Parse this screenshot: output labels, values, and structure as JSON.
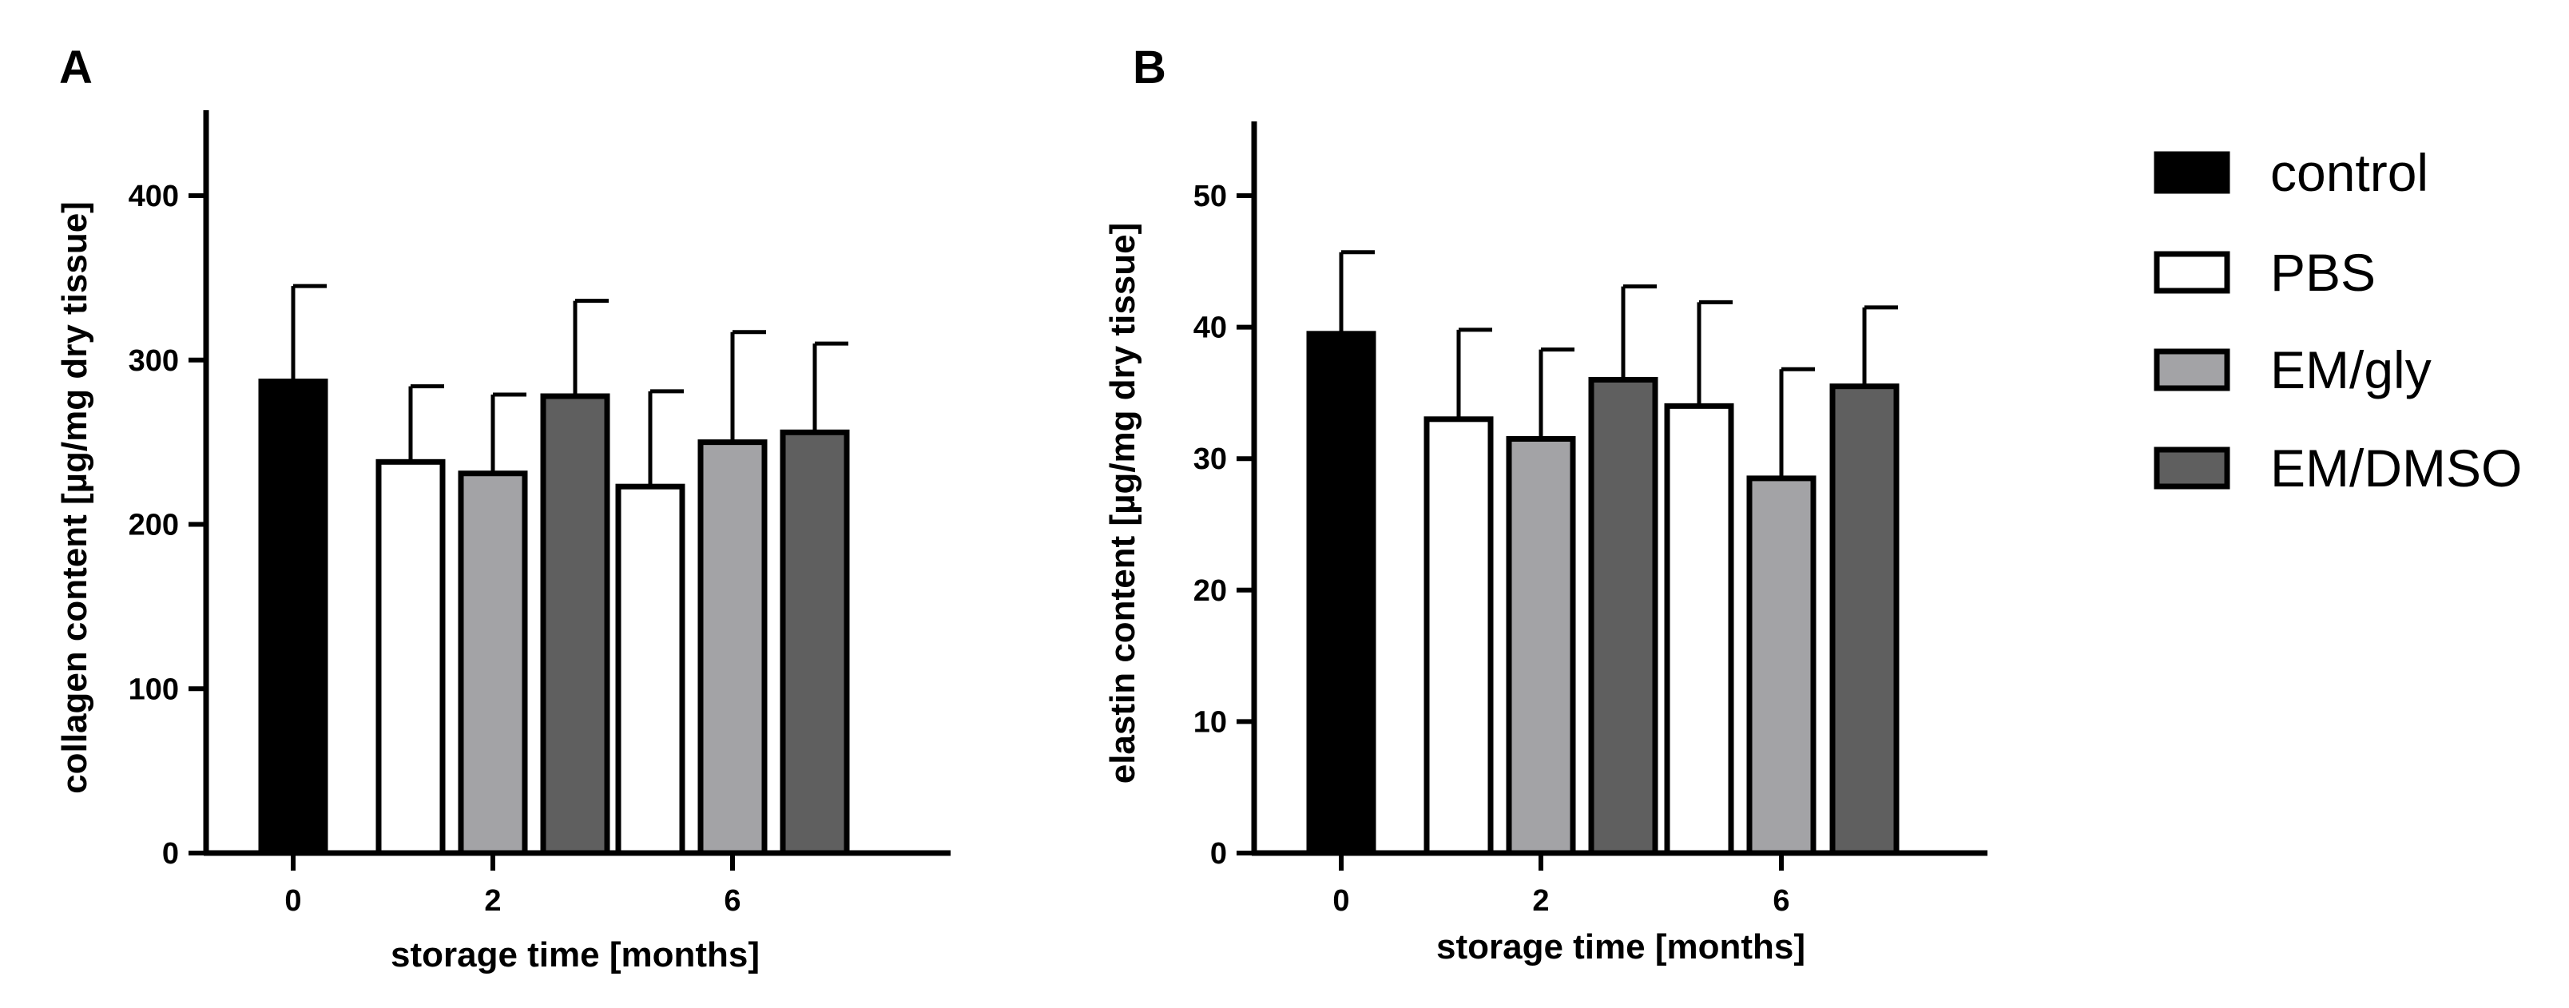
{
  "colors": {
    "control": "#000000",
    "PBS": "#ffffff",
    "EM/gly": "#a3a3a6",
    "EM/DMSO": "#5f5f5f"
  },
  "legend": {
    "items": [
      "control",
      "PBS",
      "EM/gly",
      "EM/DMSO"
    ]
  },
  "chart_data": [
    {
      "panel": "A",
      "type": "bar",
      "xlabel": "storage time [months]",
      "ylabel": "collagen content [µg/mg dry tissue]",
      "ylim": [
        0,
        450
      ],
      "yticks": [
        0,
        100,
        200,
        300,
        400
      ],
      "categories": [
        "0",
        "2",
        "6"
      ],
      "bars": [
        {
          "category": "0",
          "series": "control",
          "value": 287,
          "error": 58
        },
        {
          "category": "2",
          "series": "PBS",
          "value": 238,
          "error": 46
        },
        {
          "category": "2",
          "series": "EM/gly",
          "value": 231,
          "error": 48
        },
        {
          "category": "2",
          "series": "EM/DMSO",
          "value": 278,
          "error": 58
        },
        {
          "category": "6",
          "series": "PBS",
          "value": 223,
          "error": 58
        },
        {
          "category": "6",
          "series": "EM/gly",
          "value": 250,
          "error": 67
        },
        {
          "category": "6",
          "series": "EM/DMSO",
          "value": 256,
          "error": 54
        }
      ]
    },
    {
      "panel": "B",
      "type": "bar",
      "xlabel": "storage time [months]",
      "ylabel": "elastin content [µg/mg dry tissue]",
      "ylim": [
        0,
        55
      ],
      "yticks": [
        0,
        10,
        20,
        30,
        40,
        50
      ],
      "categories": [
        "0",
        "2",
        "6"
      ],
      "bars": [
        {
          "category": "0",
          "series": "control",
          "value": 39.5,
          "error": 6.2
        },
        {
          "category": "2",
          "series": "PBS",
          "value": 33.0,
          "error": 6.8
        },
        {
          "category": "2",
          "series": "EM/gly",
          "value": 31.5,
          "error": 6.8
        },
        {
          "category": "2",
          "series": "EM/DMSO",
          "value": 36.0,
          "error": 7.1
        },
        {
          "category": "6",
          "series": "PBS",
          "value": 34.0,
          "error": 7.9
        },
        {
          "category": "6",
          "series": "EM/gly",
          "value": 28.5,
          "error": 8.3
        },
        {
          "category": "6",
          "series": "EM/DMSO",
          "value": 35.5,
          "error": 6.0
        }
      ]
    }
  ]
}
